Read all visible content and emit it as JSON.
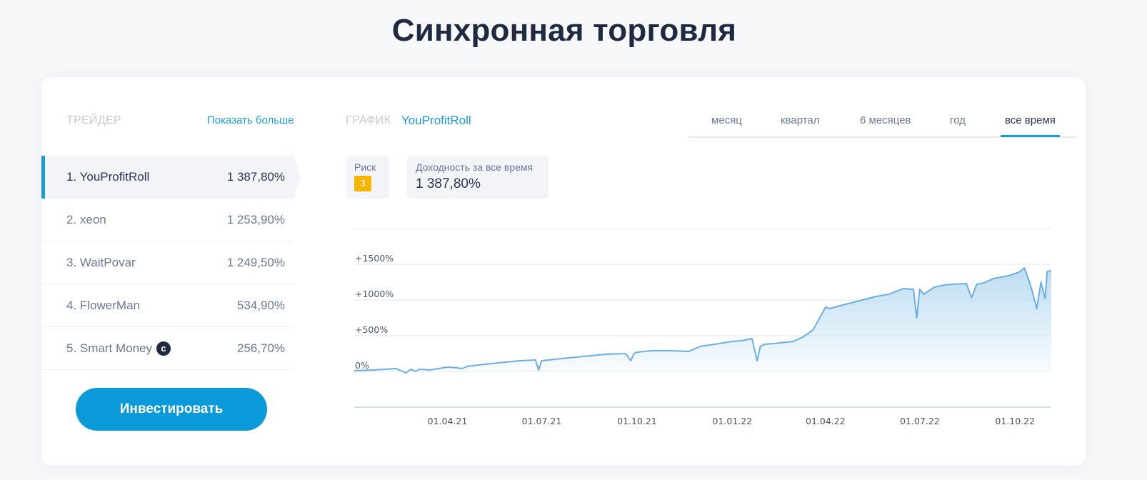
{
  "page": {
    "title": "Синхронная торговля"
  },
  "traders": {
    "header": "ТРЕЙДЕР",
    "show_more": "Показать больше",
    "items": [
      {
        "name": "1. YouProfitRoll",
        "value": "1 387,80%",
        "active": true
      },
      {
        "name": "2. xeon",
        "value": "1 253,90%",
        "active": false
      },
      {
        "name": "3. WaitPovar",
        "value": "1 249,50%",
        "active": false
      },
      {
        "name": "4. FlowerMan",
        "value": "534,90%",
        "active": false
      },
      {
        "name": "5. Smart Money",
        "value": "256,70%",
        "active": false,
        "badge": "c"
      }
    ],
    "invest_button": "Инвестировать"
  },
  "chart_panel": {
    "label": "ГРАФИК",
    "trader": "YouProfitRoll",
    "periods": [
      "месяц",
      "квартал",
      "6 месяцев",
      "год",
      "все время"
    ],
    "active_period": "все время",
    "risk_label": "Риск",
    "risk_value": "3",
    "yield_label": "Доходность за все время",
    "yield_value": "1 387,80%"
  },
  "colors": {
    "accent": "#1a9ad6",
    "button": "#0a9ad9",
    "risk": "#f5b400",
    "line": "#6aaee8",
    "fill": "#b9dcf1"
  },
  "chart_data": {
    "type": "area",
    "title": "",
    "xlabel": "",
    "ylabel": "",
    "y_ticks": [
      "0%",
      "+500%",
      "+1000%",
      "+1500%"
    ],
    "y_tick_values": [
      0,
      500,
      1000,
      1500
    ],
    "ylim": [
      -500,
      2000
    ],
    "x_ticks": [
      "01.04.21",
      "01.07.21",
      "01.10.21",
      "01.01.22",
      "01.04.22",
      "01.07.22",
      "01.10.22"
    ],
    "xlim": [
      "2021-01-01",
      "2022-11-05"
    ],
    "grid": true,
    "series": [
      {
        "x": [
          "2021-01-01",
          "2021-01-20",
          "2021-02-10",
          "2021-02-20",
          "2021-02-25",
          "2021-03-01",
          "2021-03-05",
          "2021-03-15",
          "2021-04-01",
          "2021-04-10",
          "2021-04-15",
          "2021-04-20",
          "2021-05-01",
          "2021-05-20",
          "2021-06-10",
          "2021-06-25",
          "2021-06-28",
          "2021-07-01",
          "2021-07-20",
          "2021-08-10",
          "2021-09-01",
          "2021-09-20",
          "2021-09-25",
          "2021-09-28",
          "2021-10-01",
          "2021-10-15",
          "2021-11-01",
          "2021-11-20",
          "2021-12-01",
          "2021-12-15",
          "2022-01-01",
          "2022-01-10",
          "2022-01-20",
          "2022-01-25",
          "2022-01-28",
          "2022-02-01",
          "2022-02-10",
          "2022-03-01",
          "2022-03-10",
          "2022-03-20",
          "2022-04-01",
          "2022-04-05",
          "2022-04-15",
          "2022-05-01",
          "2022-05-20",
          "2022-06-01",
          "2022-06-15",
          "2022-06-25",
          "2022-06-28",
          "2022-07-01",
          "2022-07-05",
          "2022-07-15",
          "2022-07-25",
          "2022-08-01",
          "2022-08-15",
          "2022-08-20",
          "2022-08-25",
          "2022-09-01",
          "2022-09-10",
          "2022-09-25",
          "2022-10-05",
          "2022-10-10",
          "2022-10-15",
          "2022-10-18",
          "2022-10-22",
          "2022-10-26",
          "2022-10-30",
          "2022-11-01",
          "2022-11-05"
        ],
        "y": [
          10,
          20,
          40,
          -20,
          30,
          0,
          30,
          20,
          60,
          50,
          40,
          70,
          90,
          120,
          150,
          160,
          20,
          150,
          180,
          210,
          240,
          250,
          150,
          250,
          270,
          290,
          290,
          280,
          350,
          380,
          420,
          430,
          460,
          150,
          350,
          380,
          390,
          420,
          480,
          580,
          900,
          880,
          920,
          980,
          1050,
          1080,
          1160,
          1150,
          750,
          1150,
          1080,
          1180,
          1210,
          1220,
          1230,
          1030,
          1220,
          1240,
          1300,
          1340,
          1390,
          1450,
          1250,
          1100,
          880,
          1250,
          1020,
          1400,
          1410
        ]
      }
    ]
  }
}
